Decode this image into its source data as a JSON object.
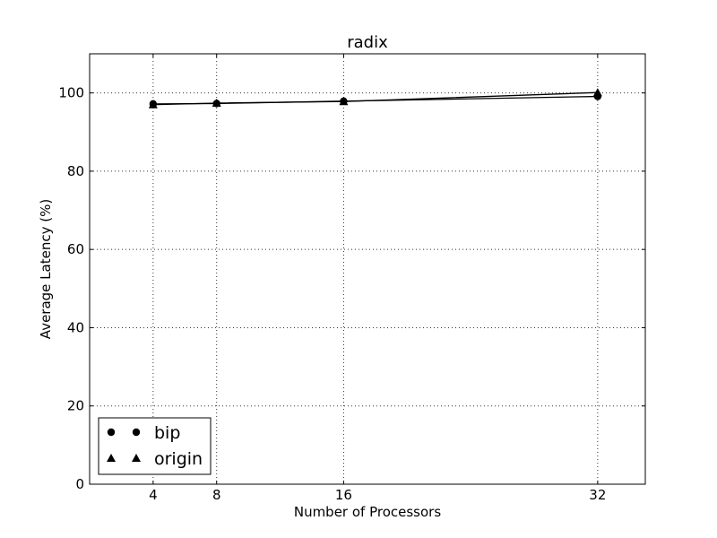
{
  "chart_data": {
    "type": "line",
    "title": "radix",
    "xlabel": "Number of Processors",
    "ylabel": "Average Latency (%)",
    "x": [
      4,
      8,
      16,
      32
    ],
    "xlim": [
      0,
      35
    ],
    "ylim": [
      0,
      110
    ],
    "xticks": [
      4,
      8,
      16,
      32
    ],
    "yticks": [
      0,
      20,
      40,
      60,
      80,
      100
    ],
    "grid": true,
    "legend_position": "lower-left",
    "series": [
      {
        "name": "bip",
        "marker": "circle",
        "values": [
          97.2,
          97.3,
          97.9,
          99.1
        ]
      },
      {
        "name": "origin",
        "marker": "triangle",
        "values": [
          97.0,
          97.4,
          97.8,
          100.1
        ]
      }
    ]
  }
}
